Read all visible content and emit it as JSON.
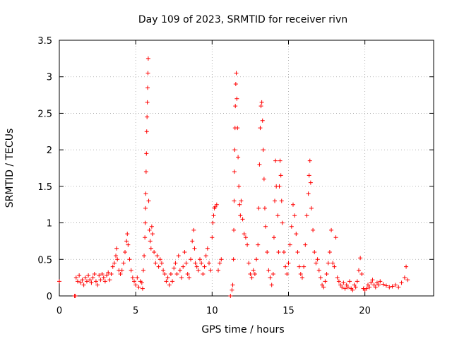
{
  "chart_data": {
    "type": "scatter",
    "title": "Day 109 of 2023, SRMTID for receiver rivn",
    "xlabel": "GPS time / hours",
    "ylabel": "SRMTID / TECUs",
    "xlim": [
      0,
      24.5
    ],
    "ylim": [
      0,
      3.5
    ],
    "grid": true,
    "marker": "+",
    "color": "#ff0000",
    "x_ticks": [
      {
        "value": 0,
        "label": "0"
      },
      {
        "value": 5,
        "label": "5"
      },
      {
        "value": 10,
        "label": "10"
      },
      {
        "value": 15,
        "label": "15"
      },
      {
        "value": 20,
        "label": "20"
      }
    ],
    "y_ticks": [
      {
        "value": 0,
        "label": "0"
      },
      {
        "value": 0.5,
        "label": "0.5"
      },
      {
        "value": 1,
        "label": "1"
      },
      {
        "value": 1.5,
        "label": "1.5"
      },
      {
        "value": 2,
        "label": "2"
      },
      {
        "value": 2.5,
        "label": "2.5"
      },
      {
        "value": 3,
        "label": "3"
      },
      {
        "value": 3.5,
        "label": "3.5"
      }
    ],
    "series": [
      {
        "name": "SRMTID",
        "points": [
          [
            0.0,
            0.2
          ],
          [
            1.0,
            0.0
          ],
          [
            1.05,
            0.0
          ],
          [
            1.1,
            0.25
          ],
          [
            1.2,
            0.2
          ],
          [
            1.3,
            0.28
          ],
          [
            1.4,
            0.18
          ],
          [
            1.5,
            0.22
          ],
          [
            1.6,
            0.15
          ],
          [
            1.7,
            0.25
          ],
          [
            1.8,
            0.2
          ],
          [
            1.9,
            0.28
          ],
          [
            2.0,
            0.22
          ],
          [
            2.1,
            0.18
          ],
          [
            2.2,
            0.25
          ],
          [
            2.3,
            0.3
          ],
          [
            2.4,
            0.2
          ],
          [
            2.5,
            0.15
          ],
          [
            2.6,
            0.28
          ],
          [
            2.7,
            0.22
          ],
          [
            2.8,
            0.3
          ],
          [
            2.9,
            0.25
          ],
          [
            3.0,
            0.2
          ],
          [
            3.1,
            0.28
          ],
          [
            3.2,
            0.32
          ],
          [
            3.3,
            0.22
          ],
          [
            3.4,
            0.3
          ],
          [
            3.5,
            0.4
          ],
          [
            3.6,
            0.45
          ],
          [
            3.7,
            0.55
          ],
          [
            3.75,
            0.65
          ],
          [
            3.8,
            0.5
          ],
          [
            3.9,
            0.35
          ],
          [
            4.0,
            0.3
          ],
          [
            4.1,
            0.35
          ],
          [
            4.2,
            0.45
          ],
          [
            4.3,
            0.6
          ],
          [
            4.4,
            0.75
          ],
          [
            4.45,
            0.85
          ],
          [
            4.5,
            0.7
          ],
          [
            4.6,
            0.5
          ],
          [
            4.7,
            0.35
          ],
          [
            4.8,
            0.25
          ],
          [
            4.9,
            0.2
          ],
          [
            5.0,
            0.15
          ],
          [
            5.1,
            0.25
          ],
          [
            5.2,
            0.12
          ],
          [
            5.3,
            0.2
          ],
          [
            5.4,
            0.18
          ],
          [
            5.45,
            0.1
          ],
          [
            5.5,
            0.35
          ],
          [
            5.55,
            0.55
          ],
          [
            5.6,
            0.8
          ],
          [
            5.62,
            1.0
          ],
          [
            5.64,
            1.2
          ],
          [
            5.66,
            1.4
          ],
          [
            5.68,
            1.7
          ],
          [
            5.7,
            1.95
          ],
          [
            5.72,
            2.25
          ],
          [
            5.74,
            2.45
          ],
          [
            5.76,
            2.65
          ],
          [
            5.78,
            2.85
          ],
          [
            5.8,
            3.05
          ],
          [
            5.82,
            3.25
          ],
          [
            5.85,
            1.3
          ],
          [
            5.9,
            0.9
          ],
          [
            5.95,
            0.75
          ],
          [
            6.0,
            0.65
          ],
          [
            6.05,
            0.95
          ],
          [
            6.1,
            0.85
          ],
          [
            6.2,
            0.6
          ],
          [
            6.3,
            0.45
          ],
          [
            6.4,
            0.55
          ],
          [
            6.5,
            0.4
          ],
          [
            6.6,
            0.5
          ],
          [
            6.7,
            0.45
          ],
          [
            6.8,
            0.35
          ],
          [
            6.9,
            0.3
          ],
          [
            7.0,
            0.2
          ],
          [
            7.1,
            0.25
          ],
          [
            7.2,
            0.15
          ],
          [
            7.3,
            0.3
          ],
          [
            7.4,
            0.2
          ],
          [
            7.5,
            0.38
          ],
          [
            7.6,
            0.45
          ],
          [
            7.7,
            0.3
          ],
          [
            7.8,
            0.55
          ],
          [
            7.9,
            0.35
          ],
          [
            8.0,
            0.25
          ],
          [
            8.1,
            0.4
          ],
          [
            8.2,
            0.6
          ],
          [
            8.3,
            0.45
          ],
          [
            8.4,
            0.3
          ],
          [
            8.5,
            0.25
          ],
          [
            8.6,
            0.5
          ],
          [
            8.7,
            0.75
          ],
          [
            8.8,
            0.9
          ],
          [
            8.85,
            0.65
          ],
          [
            8.9,
            0.45
          ],
          [
            9.0,
            0.4
          ],
          [
            9.1,
            0.35
          ],
          [
            9.2,
            0.5
          ],
          [
            9.3,
            0.45
          ],
          [
            9.4,
            0.3
          ],
          [
            9.5,
            0.4
          ],
          [
            9.6,
            0.55
          ],
          [
            9.7,
            0.65
          ],
          [
            9.8,
            0.45
          ],
          [
            9.9,
            0.35
          ],
          [
            10.0,
            0.8
          ],
          [
            10.05,
            1.0
          ],
          [
            10.1,
            1.1
          ],
          [
            10.15,
            1.2
          ],
          [
            10.2,
            1.22
          ],
          [
            10.3,
            1.25
          ],
          [
            10.4,
            0.35
          ],
          [
            10.5,
            0.45
          ],
          [
            10.6,
            0.5
          ],
          [
            11.2,
            0.0
          ],
          [
            11.3,
            0.08
          ],
          [
            11.35,
            0.15
          ],
          [
            11.4,
            0.5
          ],
          [
            11.42,
            0.9
          ],
          [
            11.44,
            1.3
          ],
          [
            11.46,
            1.7
          ],
          [
            11.48,
            2.0
          ],
          [
            11.5,
            2.3
          ],
          [
            11.52,
            2.6
          ],
          [
            11.55,
            2.9
          ],
          [
            11.58,
            3.05
          ],
          [
            11.62,
            2.7
          ],
          [
            11.66,
            2.3
          ],
          [
            11.7,
            1.9
          ],
          [
            11.75,
            1.5
          ],
          [
            11.8,
            1.25
          ],
          [
            11.85,
            1.1
          ],
          [
            11.9,
            1.3
          ],
          [
            12.0,
            1.05
          ],
          [
            12.1,
            0.85
          ],
          [
            12.2,
            0.8
          ],
          [
            12.3,
            0.7
          ],
          [
            12.4,
            0.45
          ],
          [
            12.5,
            0.3
          ],
          [
            12.6,
            0.25
          ],
          [
            12.7,
            0.35
          ],
          [
            12.8,
            0.3
          ],
          [
            12.9,
            0.5
          ],
          [
            13.0,
            0.7
          ],
          [
            13.05,
            1.2
          ],
          [
            13.1,
            1.8
          ],
          [
            13.15,
            2.3
          ],
          [
            13.2,
            2.6
          ],
          [
            13.25,
            2.65
          ],
          [
            13.3,
            2.4
          ],
          [
            13.35,
            2.0
          ],
          [
            13.4,
            1.6
          ],
          [
            13.45,
            1.2
          ],
          [
            13.5,
            0.95
          ],
          [
            13.6,
            0.6
          ],
          [
            13.7,
            0.35
          ],
          [
            13.8,
            0.25
          ],
          [
            13.9,
            0.15
          ],
          [
            14.0,
            0.3
          ],
          [
            14.05,
            0.8
          ],
          [
            14.1,
            1.3
          ],
          [
            14.15,
            1.85
          ],
          [
            14.2,
            1.5
          ],
          [
            14.3,
            1.1
          ],
          [
            14.35,
            0.6
          ],
          [
            14.4,
            1.5
          ],
          [
            14.45,
            1.85
          ],
          [
            14.5,
            1.65
          ],
          [
            14.55,
            1.3
          ],
          [
            14.6,
            1.0
          ],
          [
            14.7,
            0.6
          ],
          [
            14.8,
            0.4
          ],
          [
            14.9,
            0.3
          ],
          [
            15.0,
            0.45
          ],
          [
            15.1,
            0.7
          ],
          [
            15.2,
            0.95
          ],
          [
            15.3,
            1.25
          ],
          [
            15.4,
            1.1
          ],
          [
            15.5,
            0.85
          ],
          [
            15.6,
            0.6
          ],
          [
            15.7,
            0.4
          ],
          [
            15.8,
            0.3
          ],
          [
            15.9,
            0.25
          ],
          [
            16.0,
            0.4
          ],
          [
            16.1,
            0.7
          ],
          [
            16.2,
            1.1
          ],
          [
            16.3,
            1.4
          ],
          [
            16.35,
            1.65
          ],
          [
            16.4,
            1.85
          ],
          [
            16.45,
            1.55
          ],
          [
            16.5,
            1.2
          ],
          [
            16.6,
            0.9
          ],
          [
            16.7,
            0.6
          ],
          [
            16.8,
            0.45
          ],
          [
            16.9,
            0.5
          ],
          [
            17.0,
            0.35
          ],
          [
            17.1,
            0.25
          ],
          [
            17.2,
            0.15
          ],
          [
            17.3,
            0.12
          ],
          [
            17.4,
            0.2
          ],
          [
            17.5,
            0.3
          ],
          [
            17.6,
            0.45
          ],
          [
            17.7,
            0.6
          ],
          [
            17.8,
            0.9
          ],
          [
            17.9,
            0.45
          ],
          [
            18.0,
            0.4
          ],
          [
            18.1,
            0.8
          ],
          [
            18.2,
            0.25
          ],
          [
            18.3,
            0.2
          ],
          [
            18.4,
            0.15
          ],
          [
            18.5,
            0.12
          ],
          [
            18.6,
            0.18
          ],
          [
            18.7,
            0.1
          ],
          [
            18.8,
            0.15
          ],
          [
            18.9,
            0.12
          ],
          [
            19.0,
            0.2
          ],
          [
            19.1,
            0.1
          ],
          [
            19.2,
            0.08
          ],
          [
            19.3,
            0.15
          ],
          [
            19.4,
            0.12
          ],
          [
            19.5,
            0.2
          ],
          [
            19.6,
            0.35
          ],
          [
            19.7,
            0.52
          ],
          [
            19.8,
            0.3
          ],
          [
            19.9,
            0.1
          ],
          [
            20.0,
            0.08
          ],
          [
            20.1,
            0.1
          ],
          [
            20.2,
            0.15
          ],
          [
            20.3,
            0.12
          ],
          [
            20.4,
            0.18
          ],
          [
            20.5,
            0.22
          ],
          [
            20.6,
            0.15
          ],
          [
            20.7,
            0.12
          ],
          [
            20.8,
            0.18
          ],
          [
            20.9,
            0.15
          ],
          [
            21.0,
            0.2
          ],
          [
            21.2,
            0.16
          ],
          [
            21.4,
            0.14
          ],
          [
            21.6,
            0.12
          ],
          [
            21.8,
            0.13
          ],
          [
            22.0,
            0.15
          ],
          [
            22.2,
            0.12
          ],
          [
            22.4,
            0.18
          ],
          [
            22.6,
            0.25
          ],
          [
            22.7,
            0.4
          ],
          [
            22.8,
            0.22
          ]
        ]
      }
    ]
  }
}
